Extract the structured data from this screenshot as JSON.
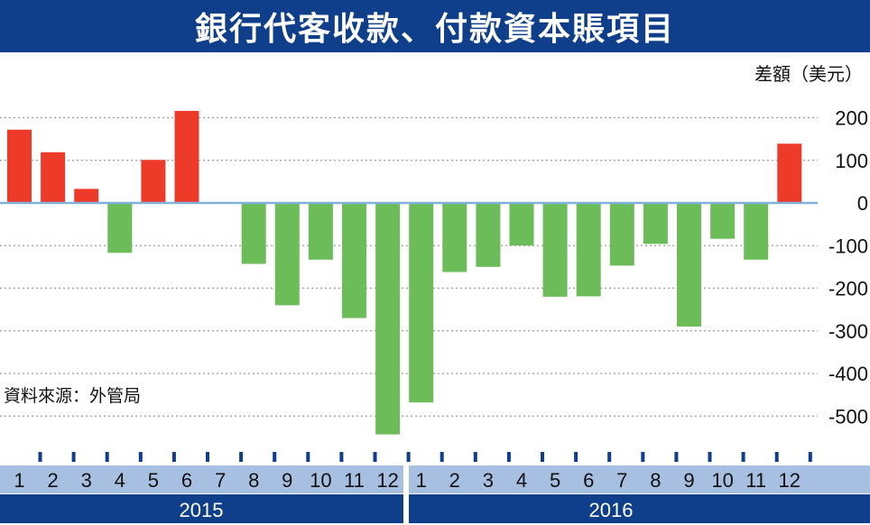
{
  "title": "銀行代客收款、付款資本賬項目",
  "unit": "差額（美元）",
  "source": "資料來源：外管局",
  "colors": {
    "header": "#0f3f8a",
    "positive": "#ee3a28",
    "negative": "#6cbd5a",
    "zero_line": "#7fb1dc",
    "axis_band": "#a7bfe0",
    "year_band": "#0f3f8a"
  },
  "chart_data": {
    "type": "bar",
    "title": "銀行代客收款、付款資本賬項目",
    "ylabel": "差額（美元）",
    "xlabel": "",
    "ylim": [
      -550,
      200
    ],
    "yticks": [
      "200",
      "100",
      "0",
      "-100",
      "-200",
      "-300",
      "-400",
      "-500"
    ],
    "grid": true,
    "years": [
      "2015",
      "2016"
    ],
    "categories": [
      "1",
      "2",
      "3",
      "4",
      "5",
      "6",
      "7",
      "8",
      "9",
      "10",
      "11",
      "12",
      "1",
      "2",
      "3",
      "4",
      "5",
      "6",
      "7",
      "8",
      "9",
      "10",
      "11",
      "12"
    ],
    "values": [
      172,
      119,
      33,
      -117,
      101,
      216,
      null,
      -143,
      -240,
      -133,
      -270,
      -543,
      -468,
      -162,
      -150,
      -100,
      -220,
      -219,
      -147,
      -96,
      -290,
      -84,
      -133,
      139
    ]
  }
}
